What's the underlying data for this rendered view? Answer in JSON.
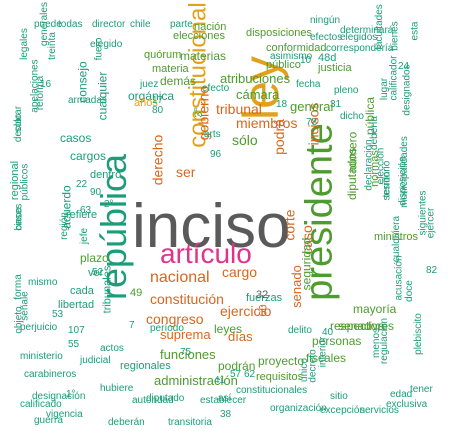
{
  "colors": {
    "gray": "#5a5a5a",
    "pink": "#e0338a",
    "gold": "#e0a21a",
    "orange": "#d9661e",
    "green": "#4e9b2f",
    "teal": "#1b9e77",
    "blue": "#3b6ea8"
  },
  "words": [
    {
      "text": "inciso",
      "color": "gray"
    },
    {
      "text": "ley",
      "color": "gold"
    },
    {
      "text": "república",
      "color": "teal"
    },
    {
      "text": "presidente",
      "color": "green"
    },
    {
      "text": "artículo",
      "color": "pink"
    },
    {
      "text": "constitucional",
      "color": "gold"
    },
    {
      "text": "nacional",
      "color": "orange"
    },
    {
      "text": "cargo",
      "color": "orange"
    },
    {
      "text": "corte",
      "color": "orange"
    },
    {
      "text": "constitución",
      "color": "orange"
    },
    {
      "text": "ejercicio",
      "color": "orange"
    },
    {
      "text": "derecho",
      "color": "orange"
    },
    {
      "text": "podrá",
      "color": "orange"
    },
    {
      "text": "caso",
      "color": "orange"
    },
    {
      "text": "tribunal",
      "color": "orange"
    },
    {
      "text": "miembros",
      "color": "orange"
    },
    {
      "text": "incisos",
      "color": "orange"
    },
    {
      "text": "ser",
      "color": "orange"
    },
    {
      "text": "gobierno",
      "color": "orange"
    },
    {
      "text": "congreso",
      "color": "orange"
    },
    {
      "text": "suprema",
      "color": "orange"
    },
    {
      "text": "días",
      "color": "orange"
    },
    {
      "text": "senado",
      "color": "orange"
    },
    {
      "text": "atribuciones",
      "color": "green"
    },
    {
      "text": "cámara",
      "color": "green"
    },
    {
      "text": "general",
      "color": "green"
    },
    {
      "text": "funciones",
      "color": "green"
    },
    {
      "text": "administración",
      "color": "green"
    },
    {
      "text": "orgánica",
      "color": "teal"
    },
    {
      "text": "diputados",
      "color": "green"
    },
    {
      "text": "número",
      "color": "green"
    },
    {
      "text": "seguridad",
      "color": "green"
    },
    {
      "text": "pública",
      "color": "green"
    },
    {
      "text": "senadores",
      "color": "green"
    },
    {
      "text": "mayoría",
      "color": "green"
    },
    {
      "text": "ministros",
      "color": "green"
    },
    {
      "text": "normas",
      "color": "green"
    },
    {
      "text": "materias",
      "color": "green"
    },
    {
      "text": "justicia",
      "color": "green"
    },
    {
      "text": "público",
      "color": "green"
    },
    {
      "text": "materia",
      "color": "green"
    },
    {
      "text": "conformidad",
      "color": "green"
    },
    {
      "text": "disposiciones",
      "color": "green"
    },
    {
      "text": "elecciones",
      "color": "green"
    },
    {
      "text": "nación",
      "color": "green"
    },
    {
      "text": "quórum",
      "color": "green"
    },
    {
      "text": "personas",
      "color": "green"
    },
    {
      "text": "fiscales",
      "color": "green"
    },
    {
      "text": "proyecto",
      "color": "green"
    },
    {
      "text": "podrán",
      "color": "green"
    },
    {
      "text": "leyes",
      "color": "green"
    },
    {
      "text": "respectiva",
      "color": "green"
    },
    {
      "text": "requisitos",
      "color": "green"
    },
    {
      "text": "demás",
      "color": "green"
    },
    {
      "text": "plazo",
      "color": "green"
    },
    {
      "text": "acuerdo",
      "color": "teal"
    },
    {
      "text": "cargos",
      "color": "teal"
    },
    {
      "text": "casos",
      "color": "teal"
    },
    {
      "text": "cualquier",
      "color": "teal"
    },
    {
      "text": "consejo",
      "color": "teal"
    },
    {
      "text": "libertad",
      "color": "teal"
    },
    {
      "text": "regional",
      "color": "teal"
    },
    {
      "text": "regionales",
      "color": "teal"
    },
    {
      "text": "tribunales",
      "color": "teal"
    },
    {
      "text": "fuerzas",
      "color": "teal"
    },
    {
      "text": "sólo",
      "color": "green"
    },
    {
      "text": "60",
      "color": "orange"
    },
    {
      "text": "32",
      "color": "gray"
    },
    {
      "text": "49",
      "color": "green"
    },
    {
      "text": "48d",
      "color": "teal"
    },
    {
      "text": "3°",
      "color": "green"
    },
    {
      "text": "años",
      "color": "gold"
    },
    {
      "text": "refiere",
      "color": "teal"
    },
    {
      "text": "dentro",
      "color": "teal"
    },
    {
      "text": "ver",
      "color": "teal"
    },
    {
      "text": "cada",
      "color": "teal"
    },
    {
      "text": "debería",
      "color": "teal"
    },
    {
      "text": "dicho",
      "color": "teal"
    },
    {
      "text": "pleno",
      "color": "teal"
    },
    {
      "text": "lugar",
      "color": "teal"
    },
    {
      "text": "cualquiera",
      "color": "teal"
    },
    {
      "text": "disposición",
      "color": "teal"
    },
    {
      "text": "siguientes",
      "color": "teal"
    },
    {
      "text": "ejercer",
      "color": "teal"
    },
    {
      "text": "sesión",
      "color": "teal"
    },
    {
      "text": "elección",
      "color": "teal"
    },
    {
      "text": "declaración",
      "color": "teal"
    },
    {
      "text": "municipalidades",
      "color": "teal"
    },
    {
      "text": "territorio",
      "color": "teal"
    },
    {
      "text": "designados",
      "color": "teal"
    },
    {
      "text": "correspondería",
      "color": "teal"
    },
    {
      "text": "determinará",
      "color": "teal"
    },
    {
      "text": "ningún",
      "color": "teal"
    },
    {
      "text": "elegido",
      "color": "teal"
    },
    {
      "text": "elegidos",
      "color": "teal"
    },
    {
      "text": "efectos",
      "color": "teal"
    },
    {
      "text": "facultades",
      "color": "teal"
    },
    {
      "text": "bienes",
      "color": "teal"
    },
    {
      "text": "calificador",
      "color": "teal"
    },
    {
      "text": "esta",
      "color": "teal"
    },
    {
      "text": "generales",
      "color": "teal"
    },
    {
      "text": "director",
      "color": "teal"
    },
    {
      "text": "chile",
      "color": "teal"
    },
    {
      "text": "parte",
      "color": "teal"
    },
    {
      "text": "puede",
      "color": "teal"
    },
    {
      "text": "todas",
      "color": "teal"
    },
    {
      "text": "legales",
      "color": "teal"
    },
    {
      "text": "apelaciones",
      "color": "teal"
    },
    {
      "text": "solo",
      "color": "teal"
    },
    {
      "text": "declarar",
      "color": "teal"
    },
    {
      "text": "públicos",
      "color": "teal"
    },
    {
      "text": "cinco",
      "color": "teal"
    },
    {
      "text": "bases",
      "color": "teal"
    },
    {
      "text": "efecto",
      "color": "teal"
    },
    {
      "text": "fecha",
      "color": "teal"
    },
    {
      "text": "período",
      "color": "teal"
    },
    {
      "text": "actos",
      "color": "teal"
    },
    {
      "text": "mismo",
      "color": "teal"
    },
    {
      "text": "perjuicio",
      "color": "teal"
    },
    {
      "text": "ministerio",
      "color": "teal"
    },
    {
      "text": "judicial",
      "color": "teal"
    },
    {
      "text": "carabineros",
      "color": "teal"
    },
    {
      "text": "calificado",
      "color": "teal"
    },
    {
      "text": "hubiere",
      "color": "teal"
    },
    {
      "text": "designación",
      "color": "teal"
    },
    {
      "text": "vigencia",
      "color": "teal"
    },
    {
      "text": "guerra",
      "color": "teal"
    },
    {
      "text": "deberán",
      "color": "teal"
    },
    {
      "text": "transitoria",
      "color": "teal"
    },
    {
      "text": "autoridad",
      "color": "teal"
    },
    {
      "text": "diputado",
      "color": "teal"
    },
    {
      "text": "organización",
      "color": "teal"
    },
    {
      "text": "excepción",
      "color": "teal"
    },
    {
      "text": "servicios",
      "color": "teal"
    },
    {
      "text": "sitio",
      "color": "teal"
    },
    {
      "text": "constitucionales",
      "color": "teal"
    },
    {
      "text": "establecer",
      "color": "teal"
    },
    {
      "text": "menos",
      "color": "teal"
    },
    {
      "text": "acusación",
      "color": "teal"
    },
    {
      "text": "regulación",
      "color": "teal"
    },
    {
      "text": "plebiscito",
      "color": "teal"
    },
    {
      "text": "exclusiva",
      "color": "teal"
    },
    {
      "text": "tener",
      "color": "teal"
    },
    {
      "text": "edad",
      "color": "teal"
    },
    {
      "text": "interior",
      "color": "teal"
    },
    {
      "text": "decreto",
      "color": "teal"
    },
    {
      "text": "delito",
      "color": "teal"
    },
    {
      "text": "arts",
      "color": "teal"
    },
    {
      "text": "armadas",
      "color": "teal"
    },
    {
      "text": "reforma",
      "color": "teal"
    },
    {
      "text": "treinta",
      "color": "teal"
    },
    {
      "text": "forma",
      "color": "teal"
    },
    {
      "text": "señale",
      "color": "teal"
    },
    {
      "text": "objeto",
      "color": "teal"
    },
    {
      "text": "región",
      "color": "teal"
    },
    {
      "text": "doce",
      "color": "teal"
    },
    {
      "text": "fuero",
      "color": "teal"
    },
    {
      "text": "jefe",
      "color": "teal"
    },
    {
      "text": "juez",
      "color": "teal"
    },
    {
      "text": "único",
      "color": "teal"
    },
    {
      "text": "así",
      "color": "teal"
    },
    {
      "text": "asimismo",
      "color": "teal"
    },
    {
      "text": "10",
      "color": "teal"
    },
    {
      "text": "22",
      "color": "teal"
    },
    {
      "text": "90",
      "color": "teal"
    },
    {
      "text": "80",
      "color": "teal"
    },
    {
      "text": "17",
      "color": "teal"
    },
    {
      "text": "18",
      "color": "teal"
    },
    {
      "text": "75",
      "color": "teal"
    },
    {
      "text": "57",
      "color": "teal"
    },
    {
      "text": "41",
      "color": "teal"
    },
    {
      "text": "38",
      "color": "teal"
    },
    {
      "text": "82",
      "color": "teal"
    },
    {
      "text": "55",
      "color": "teal"
    },
    {
      "text": "1°",
      "color": "teal"
    },
    {
      "text": "2°",
      "color": "teal"
    },
    {
      "text": "16",
      "color": "teal"
    },
    {
      "text": "53",
      "color": "teal"
    },
    {
      "text": "63",
      "color": "teal"
    },
    {
      "text": "107",
      "color": "teal"
    },
    {
      "text": "96",
      "color": "teal"
    },
    {
      "text": "31",
      "color": "teal"
    },
    {
      "text": "78",
      "color": "teal"
    },
    {
      "text": "24",
      "color": "teal"
    },
    {
      "text": "62",
      "color": "teal"
    },
    {
      "text": "40",
      "color": "teal"
    },
    {
      "text": "52",
      "color": "teal"
    },
    {
      "text": "7",
      "color": "teal"
    }
  ]
}
